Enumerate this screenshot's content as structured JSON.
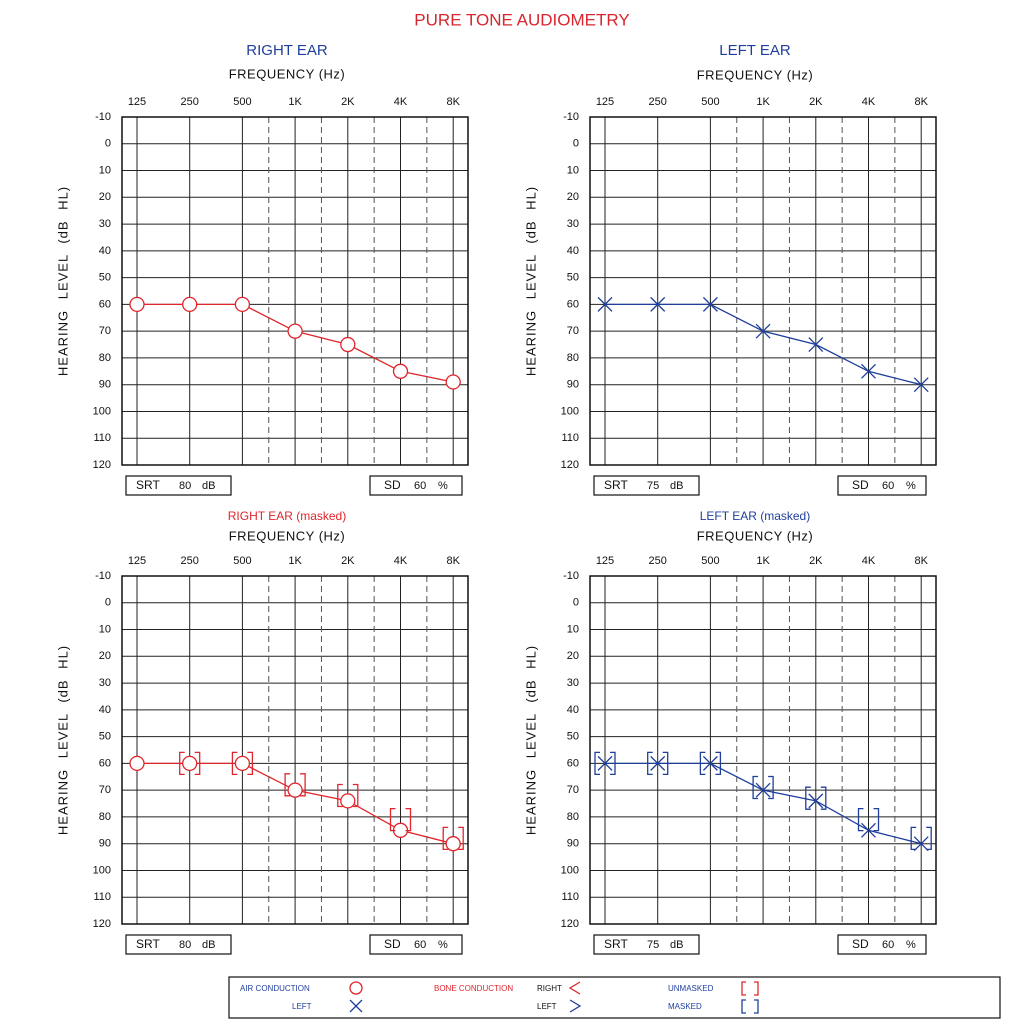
{
  "title": "PURE TONE AUDIOMETRY",
  "title_color": "#d9262e",
  "chart_data": [
    {
      "type": "line",
      "title": "RIGHT EAR",
      "title_color": "#1f3f9c",
      "x_label": "FREQUENCY (Hz)",
      "y_label": "HEARING LEVEL (dB HL)",
      "categories": [
        "125",
        "250",
        "500",
        "1K",
        "2K",
        "4K",
        "8K"
      ],
      "ylim": [
        -10,
        120
      ],
      "inverted": true,
      "yticks": [
        -10,
        0,
        10,
        20,
        30,
        40,
        50,
        60,
        70,
        80,
        90,
        100,
        110,
        120
      ],
      "grid": true,
      "series": [
        {
          "color": "#e0262c",
          "marker": "circle",
          "line": true,
          "values": [
            60,
            60,
            60,
            70,
            75,
            85,
            89
          ]
        }
      ],
      "srt": {
        "label": "SRT",
        "value": 80,
        "unit": "dB"
      },
      "sd": {
        "label": "SD",
        "value": 60,
        "unit": "%"
      }
    },
    {
      "type": "line",
      "title": "LEFT EAR",
      "title_color": "#1f3f9c",
      "x_label": "FREQUENCY (Hz)",
      "y_label": "HEARING LEVEL (dB HL)",
      "categories": [
        "125",
        "250",
        "500",
        "1K",
        "2K",
        "4K",
        "8K"
      ],
      "ylim": [
        -10,
        120
      ],
      "inverted": true,
      "yticks": [
        -10,
        0,
        10,
        20,
        30,
        40,
        50,
        60,
        70,
        80,
        90,
        100,
        110,
        120
      ],
      "grid": true,
      "series": [
        {
          "color": "#1f3f9c",
          "marker": "x",
          "line": true,
          "values": [
            60,
            60,
            60,
            70,
            75,
            85,
            90
          ]
        }
      ],
      "srt": {
        "label": "SRT",
        "value": 75,
        "unit": "dB"
      },
      "sd": {
        "label": "SD",
        "value": 60,
        "unit": "%"
      }
    },
    {
      "type": "line",
      "title": "RIGHT EAR (masked)",
      "title_color": "#e0262c",
      "x_label": "FREQUENCY (Hz)",
      "y_label": "HEARING LEVEL (dB HL)",
      "categories": [
        "125",
        "250",
        "500",
        "1K",
        "2K",
        "4K",
        "8K"
      ],
      "ylim": [
        -10,
        120
      ],
      "inverted": true,
      "yticks": [
        -10,
        0,
        10,
        20,
        30,
        40,
        50,
        60,
        70,
        80,
        90,
        100,
        110,
        120
      ],
      "grid": true,
      "series": [
        {
          "color": "#e0262c",
          "marker": "circle",
          "line": true,
          "values": [
            60,
            60,
            60,
            70,
            74,
            85,
            90
          ]
        },
        {
          "color": "#e0262c",
          "marker": "bracket",
          "line": false,
          "values": [
            null,
            60,
            60,
            68,
            72,
            81,
            88
          ]
        }
      ],
      "srt": {
        "label": "SRT",
        "value": 80,
        "unit": "dB"
      },
      "sd": {
        "label": "SD",
        "value": 60,
        "unit": "%"
      }
    },
    {
      "type": "line",
      "title": "LEFT EAR (masked)",
      "title_color": "#1f3f9c",
      "x_label": "FREQUENCY (Hz)",
      "y_label": "HEARING LEVEL (dB HL)",
      "categories": [
        "125",
        "250",
        "500",
        "1K",
        "2K",
        "4K",
        "8K"
      ],
      "ylim": [
        -10,
        120
      ],
      "inverted": true,
      "yticks": [
        -10,
        0,
        10,
        20,
        30,
        40,
        50,
        60,
        70,
        80,
        90,
        100,
        110,
        120
      ],
      "grid": true,
      "series": [
        {
          "color": "#1f3f9c",
          "marker": "x",
          "line": true,
          "values": [
            60,
            60,
            60,
            70,
            74,
            85,
            90
          ]
        },
        {
          "color": "#1f3f9c",
          "marker": "bracket",
          "line": false,
          "values": [
            60,
            60,
            60,
            69,
            73,
            81,
            88
          ]
        }
      ],
      "srt": {
        "label": "SRT",
        "value": 75,
        "unit": "dB"
      },
      "sd": {
        "label": "SD",
        "value": 60,
        "unit": "%"
      }
    }
  ],
  "legend": {
    "air_conduction": "AIR CONDUCTION",
    "air_left": "LEFT",
    "bone_conduction": "BONE CONDUCTION",
    "bone_right": "RIGHT",
    "bone_left": "LEFT",
    "unmasked": "UNMASKED",
    "masked": "MASKED"
  }
}
